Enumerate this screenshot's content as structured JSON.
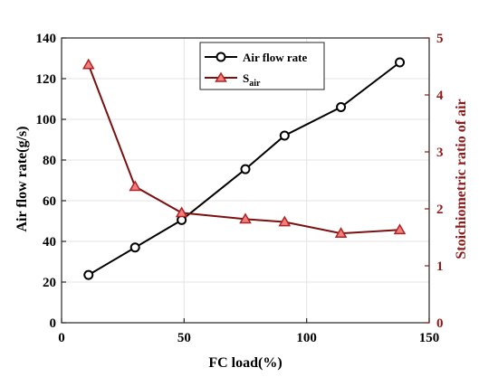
{
  "chart_data": {
    "type": "line",
    "xlabel": "FC load(%)",
    "ylabel_left": "Air flow rate(g/s)",
    "ylabel_right": "Stoichiometric ratio of air",
    "xlim": [
      0,
      150
    ],
    "ylim_left": [
      0,
      140
    ],
    "ylim_right": [
      0,
      5
    ],
    "xticks": [
      "0",
      "50",
      "100",
      "150"
    ],
    "yticks_left": [
      "0",
      "20",
      "40",
      "60",
      "80",
      "100",
      "120",
      "140"
    ],
    "yticks_right": [
      "0",
      "1",
      "2",
      "3",
      "4",
      "5"
    ],
    "grid": true,
    "legend_position": "top-center",
    "series": [
      {
        "name": "Air flow rate",
        "axis": "left",
        "color": "#000000",
        "marker": "circle",
        "x": [
          11,
          30,
          49,
          75,
          91,
          114,
          138
        ],
        "values": [
          23.5,
          37,
          50.5,
          75.5,
          92,
          106,
          128
        ]
      },
      {
        "name": "S",
        "name_subscript": "air",
        "axis": "right",
        "color": "#b22222",
        "line_color": "#7a1010",
        "marker": "triangle",
        "x": [
          11,
          30,
          49,
          75,
          91,
          114,
          138
        ],
        "values": [
          4.53,
          2.39,
          1.93,
          1.82,
          1.77,
          1.57,
          1.63
        ]
      }
    ]
  }
}
